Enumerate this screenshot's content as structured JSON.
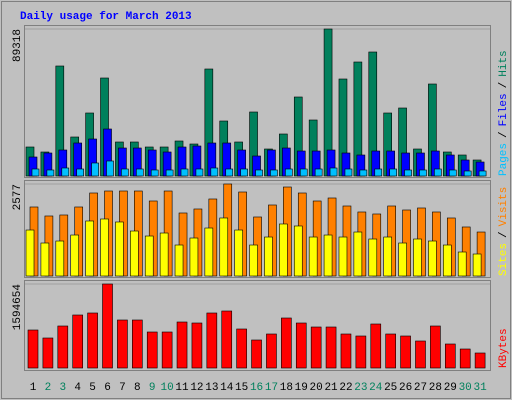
{
  "chart_data": [
    {
      "type": "bar",
      "title": "Daily usage for March 2013",
      "categories": [
        "1",
        "2",
        "3",
        "4",
        "5",
        "6",
        "7",
        "8",
        "9",
        "10",
        "11",
        "12",
        "13",
        "14",
        "15",
        "16",
        "17",
        "18",
        "19",
        "20",
        "21",
        "22",
        "23",
        "24",
        "25",
        "26",
        "27",
        "28",
        "29",
        "30",
        "31"
      ],
      "category_colors": [
        "#000000",
        "#00805c",
        "#00805c",
        "#000000",
        "#000000",
        "#000000",
        "#000000",
        "#000000",
        "#00805c",
        "#00805c",
        "#000000",
        "#000000",
        "#000000",
        "#000000",
        "#000000",
        "#00805c",
        "#00805c",
        "#000000",
        "#000000",
        "#000000",
        "#000000",
        "#000000",
        "#00805c",
        "#00805c",
        "#000000",
        "#000000",
        "#000000",
        "#000000",
        "#000000",
        "#00805c",
        "#00805c"
      ],
      "legend_separator": "/",
      "ylim": [
        0,
        89318
      ],
      "yticks": [
        89318
      ],
      "series": [
        {
          "name": "Pages",
          "color": "#00c0ff",
          "values": [
            4253,
            3646,
            4861,
            4253,
            7898,
            9114,
            4253,
            4253,
            3646,
            3646,
            4253,
            4253,
            4861,
            4253,
            4253,
            3646,
            3646,
            4253,
            4253,
            4253,
            4861,
            4253,
            3646,
            4253,
            4253,
            3646,
            3646,
            4253,
            3646,
            3038,
            3038
          ]
        },
        {
          "name": "Files",
          "color": "#0000ff",
          "values": [
            11544,
            13975,
            15798,
            20051,
            22481,
            28557,
            17013,
            17013,
            15798,
            14582,
            17620,
            18228,
            20051,
            20051,
            15798,
            12152,
            15798,
            17013,
            15190,
            15190,
            15798,
            13975,
            12760,
            15190,
            15190,
            13975,
            13975,
            15190,
            12760,
            9722,
            8506
          ]
        },
        {
          "name": "Hits",
          "color": "#00805c",
          "values": [
            17620,
            14582,
            66836,
            23696,
            38279,
            59545,
            20658,
            20658,
            17620,
            17620,
            21266,
            19443,
            65013,
            33418,
            20658,
            38886,
            16405,
            25519,
            48000,
            34026,
            89318,
            58937,
            69266,
            75342,
            38279,
            41317,
            16405,
            55899,
            14582,
            12760,
            9722
          ]
        }
      ]
    },
    {
      "type": "bar",
      "legend_separator": "/",
      "ylim": [
        0,
        2577
      ],
      "yticks": [
        2577
      ],
      "series": [
        {
          "name": "Sites",
          "color": "#ffff00",
          "values": [
            1288,
            924,
            980,
            1148,
            1541,
            1597,
            1513,
            1260,
            1120,
            1204,
            868,
            1064,
            1344,
            1625,
            1288,
            868,
            1092,
            1457,
            1401,
            1092,
            1148,
            1092,
            1232,
            1036,
            1092,
            924,
            1036,
            980,
            868,
            672,
            616
          ]
        },
        {
          "name": "Visits",
          "color": "#ff8000",
          "values": [
            1933,
            1681,
            1709,
            1933,
            2325,
            2381,
            2381,
            2381,
            2101,
            2381,
            1765,
            1877,
            2157,
            2577,
            2353,
            1653,
            1989,
            2493,
            2325,
            2101,
            2185,
            1961,
            1793,
            1737,
            1961,
            1849,
            1905,
            1793,
            1625,
            1373,
            1232
          ]
        }
      ]
    },
    {
      "type": "bar",
      "ylim": [
        0,
        1594654
      ],
      "yticks": [
        1594654
      ],
      "series": [
        {
          "name": "KBytes",
          "color": "#ff0000",
          "values": [
            721392,
            569520,
            797328,
            1006152,
            1044120,
            1594654,
            911232,
            911232,
            683424,
            683424,
            873264,
            854280,
            1044120,
            1082088,
            740376,
            531552,
            645456,
            949200,
            854280,
            778344,
            778344,
            645456,
            607488,
            835296,
            645456,
            607488,
            512568,
            797328,
            455616,
            360696,
            284760
          ]
        }
      ]
    }
  ]
}
